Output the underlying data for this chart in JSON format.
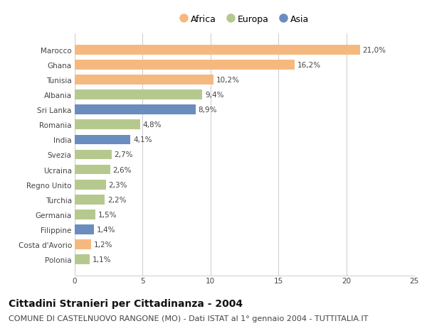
{
  "countries": [
    "Marocco",
    "Ghana",
    "Tunisia",
    "Albania",
    "Sri Lanka",
    "Romania",
    "India",
    "Svezia",
    "Ucraina",
    "Regno Unito",
    "Turchia",
    "Germania",
    "Filippine",
    "Costa d'Avorio",
    "Polonia"
  ],
  "values": [
    21.0,
    16.2,
    10.2,
    9.4,
    8.9,
    4.8,
    4.1,
    2.7,
    2.6,
    2.3,
    2.2,
    1.5,
    1.4,
    1.2,
    1.1
  ],
  "labels": [
    "21,0%",
    "16,2%",
    "10,2%",
    "9,4%",
    "8,9%",
    "4,8%",
    "4,1%",
    "2,7%",
    "2,6%",
    "2,3%",
    "2,2%",
    "1,5%",
    "1,4%",
    "1,2%",
    "1,1%"
  ],
  "continents": [
    "Africa",
    "Africa",
    "Africa",
    "Europa",
    "Asia",
    "Europa",
    "Asia",
    "Europa",
    "Europa",
    "Europa",
    "Europa",
    "Europa",
    "Asia",
    "Africa",
    "Europa"
  ],
  "colors": {
    "Africa": "#F5B97F",
    "Europa": "#B5C98E",
    "Asia": "#6B8CBF"
  },
  "xlim": [
    0,
    25
  ],
  "xticks": [
    0,
    5,
    10,
    15,
    20,
    25
  ],
  "title": "Cittadini Stranieri per Cittadinanza - 2004",
  "subtitle": "COMUNE DI CASTELNUOVO RANGONE (MO) - Dati ISTAT al 1° gennaio 2004 - TUTTITALIA.IT",
  "background_color": "#ffffff",
  "grid_color": "#cccccc",
  "bar_height": 0.65,
  "title_fontsize": 10,
  "subtitle_fontsize": 8,
  "label_fontsize": 7.5,
  "tick_fontsize": 7.5,
  "legend_fontsize": 9
}
